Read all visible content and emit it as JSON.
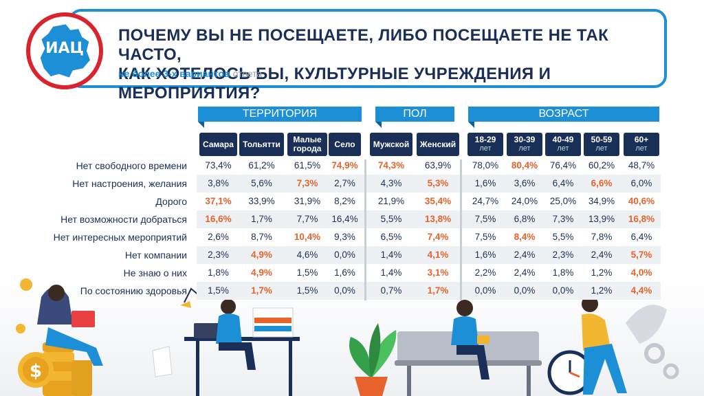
{
  "header": {
    "logo_text": "ИАЦ",
    "title_line1": "ПОЧЕМУ ВЫ НЕ ПОСЕЩАЕТЕ, ЛИБО ПОСЕЩАЕТЕ НЕ ТАК ЧАСТО,",
    "title_line2": "КАК ХОТЕЛОСЬ БЫ, КУЛЬТУРНЫЕ УЧРЕЖДЕНИЯ И МЕРОПРИЯТИЯ?",
    "subtitle_bold": "не более 3-х вариантов",
    "subtitle_gray": "ответа"
  },
  "colors": {
    "accent": "#1d8fd6",
    "navy": "#1a2f57",
    "highlight": "#e8632b",
    "logo_red": "#d9232e"
  },
  "chart_data": {
    "type": "table",
    "groups": [
      {
        "name": "ТЕРРИТОРИЯ",
        "columns": [
          0,
          1,
          2,
          3
        ]
      },
      {
        "name": "ПОЛ",
        "columns": [
          4,
          5
        ]
      },
      {
        "name": "ВОЗРАСТ",
        "columns": [
          6,
          7,
          8,
          9,
          10
        ]
      }
    ],
    "columns": [
      {
        "label": "Самара",
        "sub": ""
      },
      {
        "label": "Тольятти",
        "sub": ""
      },
      {
        "label": "Малые города",
        "line1": "Малые",
        "line2": "города",
        "sub": ""
      },
      {
        "label": "Село",
        "sub": ""
      },
      {
        "label": "Мужской",
        "sub": ""
      },
      {
        "label": "Женский",
        "sub": ""
      },
      {
        "label": "18-29",
        "sub": "лет"
      },
      {
        "label": "30-39",
        "sub": "лет"
      },
      {
        "label": "40-49",
        "sub": "лет"
      },
      {
        "label": "50-59",
        "sub": "лет"
      },
      {
        "label": "60+",
        "sub": "лет"
      }
    ],
    "rows": [
      {
        "label": "Нет свободного времени",
        "values": [
          "73,4%",
          "61,2%",
          "61,5%",
          "74,9%",
          "74,3%",
          "63,9%",
          "78,0%",
          "80,4%",
          "76,4%",
          "60,2%",
          "48,7%"
        ],
        "highlight": [
          3,
          4,
          7
        ]
      },
      {
        "label": "Нет настроения, желания",
        "values": [
          "3,8%",
          "5,6%",
          "7,3%",
          "2,7%",
          "4,3%",
          "5,3%",
          "1,6%",
          "3,6%",
          "6,4%",
          "6,6%",
          "6,0%"
        ],
        "highlight": [
          2,
          5,
          9
        ]
      },
      {
        "label": "Дорого",
        "values": [
          "37,1%",
          "33,9%",
          "31,9%",
          "8,2%",
          "21,9%",
          "35,4%",
          "24,7%",
          "24,0%",
          "25,0%",
          "34,9%",
          "40,6%"
        ],
        "highlight": [
          0,
          5,
          10
        ]
      },
      {
        "label": "Нет возможности добраться",
        "values": [
          "16,6%",
          "1,7%",
          "7,7%",
          "16,4%",
          "5,5%",
          "13,8%",
          "7,5%",
          "6,8%",
          "7,3%",
          "13,9%",
          "16,8%"
        ],
        "highlight": [
          0,
          5,
          10
        ]
      },
      {
        "label": "Нет интересных мероприятий",
        "values": [
          "2,6%",
          "8,7%",
          "10,4%",
          "9,3%",
          "6,5%",
          "7,4%",
          "7,5%",
          "8,4%",
          "5,5%",
          "7,8%",
          "6,4%"
        ],
        "highlight": [
          2,
          5,
          7
        ]
      },
      {
        "label": "Нет компании",
        "values": [
          "2,3%",
          "4,9%",
          "4,6%",
          "0,0%",
          "1,4%",
          "4,1%",
          "1,6%",
          "2,4%",
          "2,3%",
          "2,4%",
          "5,7%"
        ],
        "highlight": [
          1,
          5,
          10
        ]
      },
      {
        "label": "Не знаю о них",
        "values": [
          "1,8%",
          "4,9%",
          "1,5%",
          "1,6%",
          "1,4%",
          "3,1%",
          "2,2%",
          "2,4%",
          "1,8%",
          "1,2%",
          "4,0%"
        ],
        "highlight": [
          1,
          5,
          10
        ]
      },
      {
        "label": "По состоянию здоровья",
        "values": [
          "1,5%",
          "1,7%",
          "1,5%",
          "0,0%",
          "0,7%",
          "1,7%",
          "0,0%",
          "0,0%",
          "0,0%",
          "1,2%",
          "4,4%"
        ],
        "highlight": [
          1,
          5,
          10
        ]
      }
    ]
  }
}
